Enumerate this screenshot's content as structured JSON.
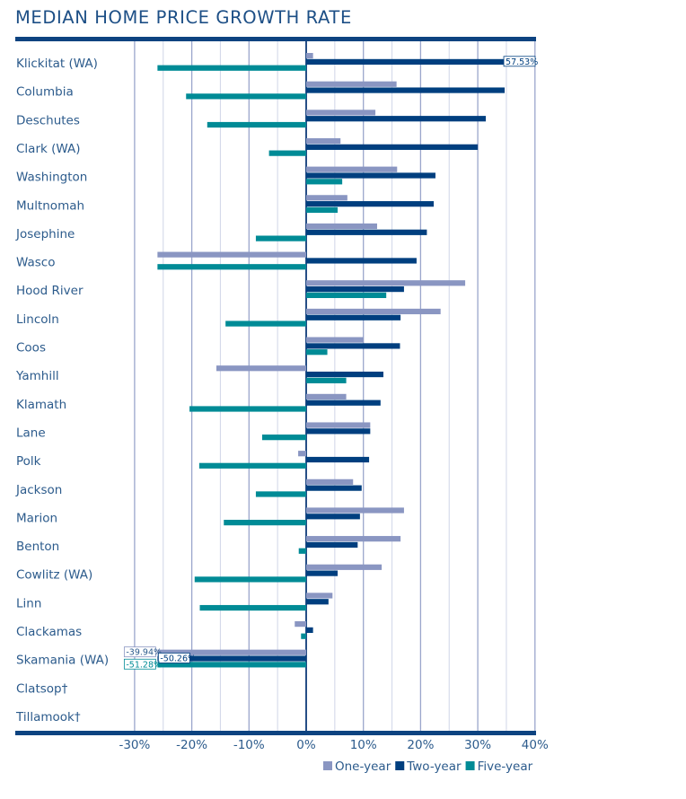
{
  "chart_data": {
    "type": "bar",
    "orientation": "horizontal",
    "title": "MEDIAN HOME PRICE GROWTH RATE",
    "xlabel": "",
    "ylabel": "",
    "xlim": [
      -30,
      40
    ],
    "x_ticks": [
      -30,
      -20,
      -10,
      0,
      10,
      20,
      30,
      40
    ],
    "x_tick_labels": [
      "-30%",
      "-20%",
      "-10%",
      "0%",
      "10%",
      "20%",
      "30%",
      "40%"
    ],
    "minor_grid_step": 5,
    "grid": true,
    "legend_position": "bottom-right",
    "categories": [
      "Klickitat (WA)",
      "Columbia",
      "Deschutes",
      "Clark (WA)",
      "Washington",
      "Multnomah",
      "Josephine",
      "Wasco",
      "Hood River",
      "Lincoln",
      "Coos",
      "Yamhill",
      "Klamath",
      "Lane",
      "Polk",
      "Jackson",
      "Marion",
      "Benton",
      "Cowlitz (WA)",
      "Linn",
      "Clackamas",
      "Skamania (WA)",
      "Clatsop†",
      "Tillamook†"
    ],
    "series": [
      {
        "name": "One-year",
        "color": "#8a96c2",
        "values": [
          1.2,
          15.8,
          12.1,
          6.0,
          15.9,
          7.2,
          12.4,
          -27.3,
          27.8,
          23.5,
          10.0,
          -15.7,
          7.0,
          11.2,
          -1.4,
          8.2,
          17.1,
          16.5,
          13.2,
          4.6,
          -2.0,
          -39.94,
          null,
          null
        ]
      },
      {
        "name": "Two-year",
        "color": "#003f7f",
        "values": [
          57.53,
          34.7,
          31.4,
          30.0,
          22.6,
          22.3,
          21.1,
          19.3,
          17.1,
          16.5,
          16.4,
          13.5,
          13.0,
          11.2,
          11.0,
          9.7,
          9.4,
          9.0,
          5.5,
          3.9,
          1.2,
          -50.26,
          null,
          null
        ]
      },
      {
        "name": "Five-year",
        "color": "#008b96",
        "values": [
          -26.1,
          -21.0,
          -17.3,
          -6.5,
          6.3,
          5.5,
          -8.8,
          -33.9,
          14.0,
          -14.1,
          3.7,
          7.0,
          -20.4,
          -7.7,
          -18.7,
          -8.8,
          -14.4,
          -1.3,
          -19.5,
          -18.6,
          -0.9,
          -51.28,
          null,
          null
        ]
      }
    ],
    "annotations": [
      {
        "text": "57.53%",
        "category": "Klickitat (WA)",
        "series": "Two-year"
      },
      {
        "text": "-39.94%",
        "category": "Skamania (WA)",
        "series": "One-year"
      },
      {
        "text": "-50.26%",
        "category": "Skamania (WA)",
        "series": "Two-year"
      },
      {
        "text": "-51.28%",
        "category": "Skamania (WA)",
        "series": "Five-year"
      }
    ],
    "footnote_marker": "† on Clatsop and Tillamook (no data plotted)"
  },
  "colors": {
    "frame": "#0d4380",
    "grid_major": "#9aa6cc",
    "grid_minor": "#d4d9ea",
    "zero_line": "#0d3a78",
    "label_text": "#2c5b8c"
  }
}
